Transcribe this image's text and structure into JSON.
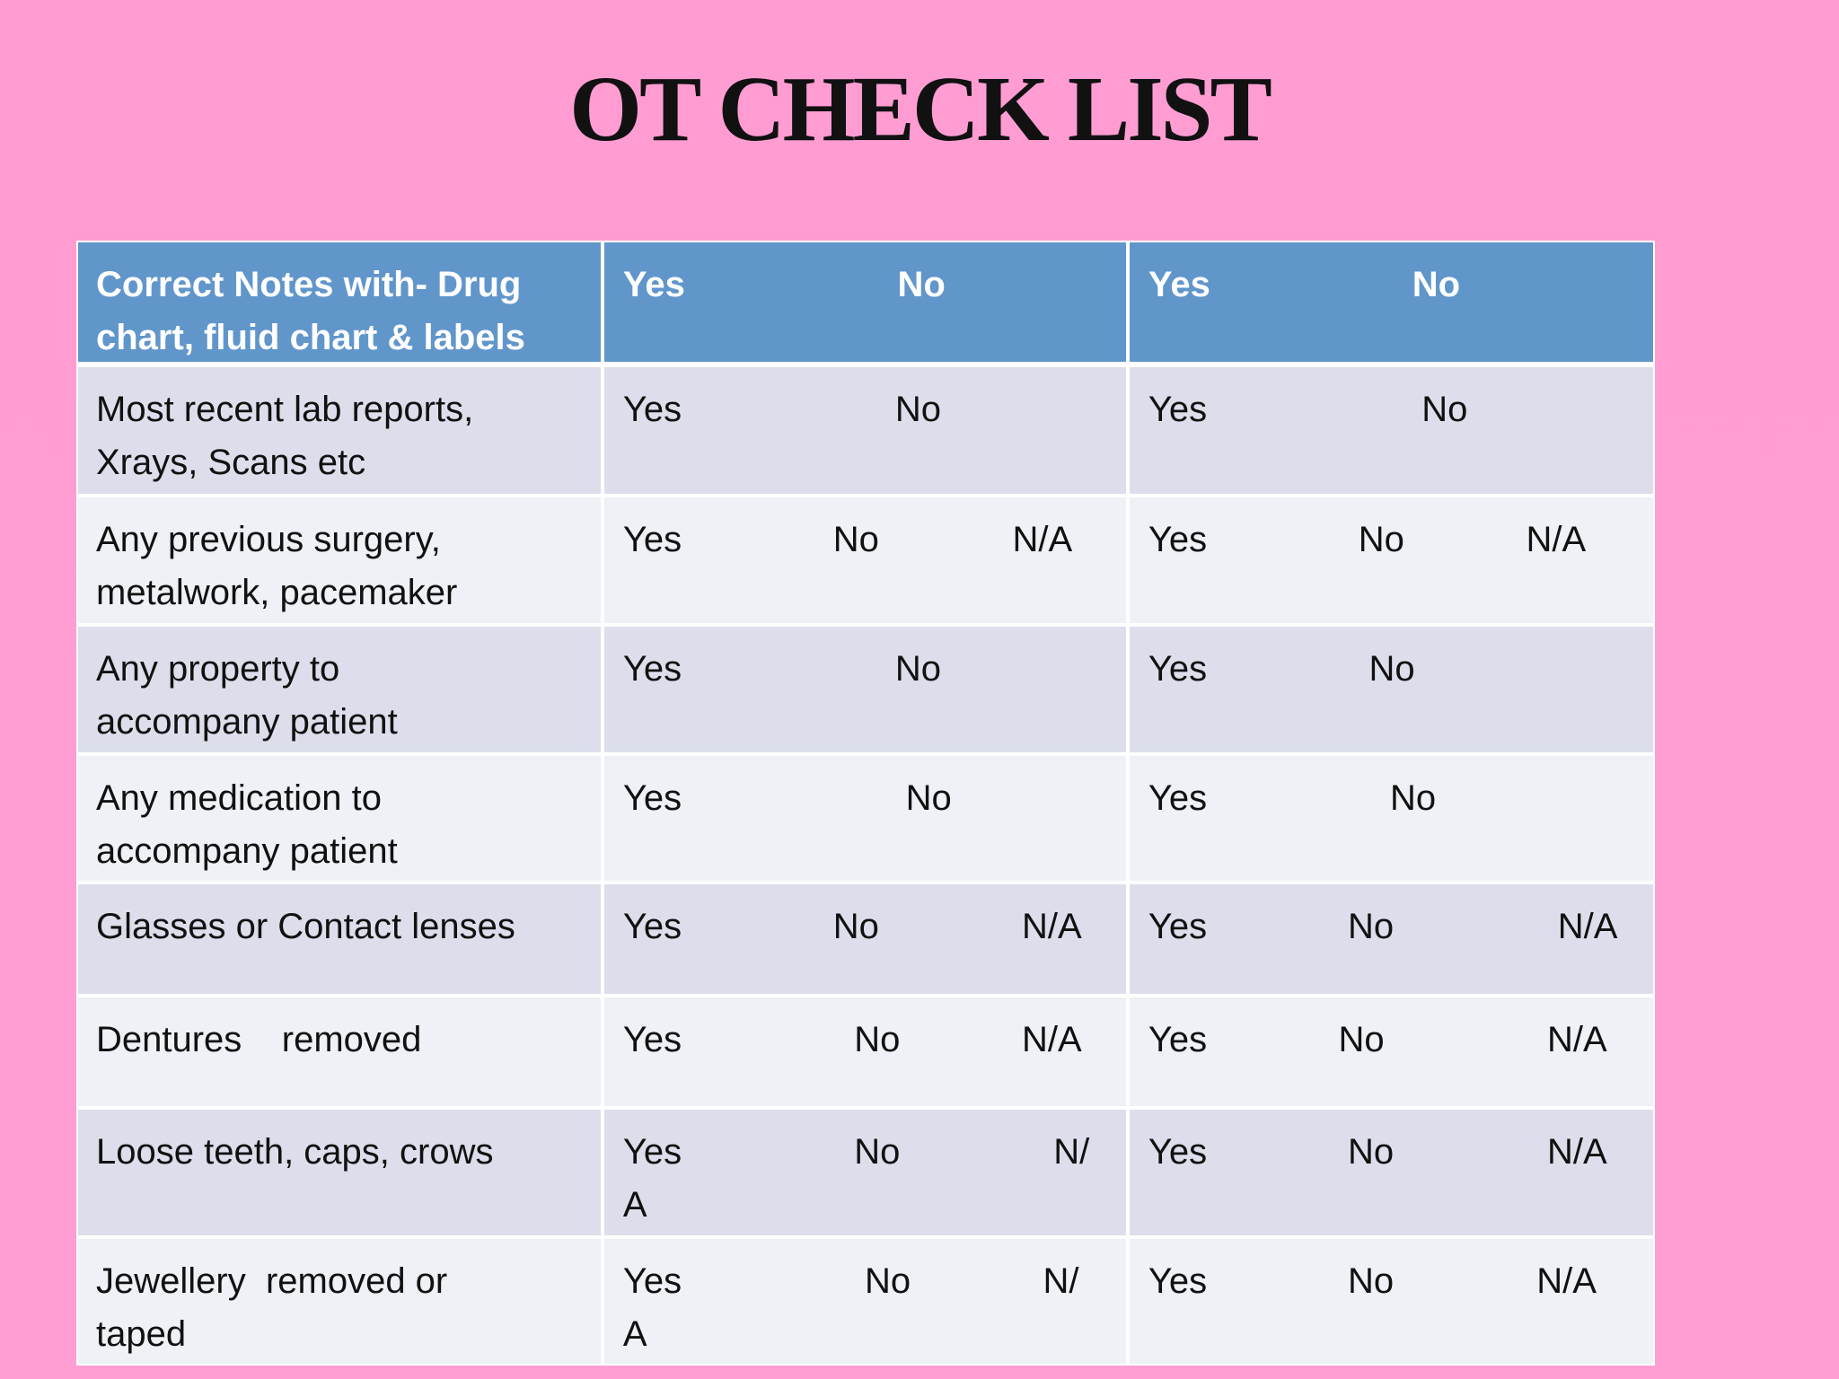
{
  "title": "OT CHECK LIST",
  "table": {
    "header": {
      "label": [
        "Correct Notes with- Drug",
        "chart, fluid chart & labels"
      ],
      "cells": [
        [
          "Yes",
          "No"
        ],
        [
          "Yes",
          "No"
        ]
      ]
    },
    "rows": [
      {
        "label": [
          "Most recent lab reports,",
          "Xrays, Scans etc"
        ],
        "cells": [
          [
            "Yes",
            "No"
          ],
          [
            "Yes",
            "No"
          ]
        ]
      },
      {
        "label": [
          "Any previous surgery,",
          "metalwork, pacemaker"
        ],
        "cells": [
          [
            "Yes",
            "No",
            "N/A"
          ],
          [
            "Yes",
            "No",
            "N/A"
          ]
        ]
      },
      {
        "label": [
          "Any property to",
          "accompany patient"
        ],
        "cells": [
          [
            "Yes",
            "No"
          ],
          [
            "Yes",
            "No"
          ]
        ]
      },
      {
        "label": [
          "Any medication to",
          "accompany patient"
        ],
        "cells": [
          [
            "Yes",
            "No"
          ],
          [
            "Yes",
            "No"
          ]
        ]
      },
      {
        "label": [
          "Glasses or Contact lenses"
        ],
        "cells": [
          [
            "Yes",
            "No",
            "N/A"
          ],
          [
            "Yes",
            "No",
            "N/A"
          ]
        ]
      },
      {
        "label": [
          "Dentures    removed"
        ],
        "cells": [
          [
            "Yes",
            "No",
            "N/A"
          ],
          [
            "Yes",
            "No",
            "N/A"
          ]
        ]
      },
      {
        "label": [
          "Loose teeth, caps, crows"
        ],
        "cells": [
          [
            "Yes",
            "No",
            "N/",
            "A"
          ],
          [
            "Yes",
            "No",
            "N/A"
          ]
        ]
      },
      {
        "label": [
          "Jewellery  removed or",
          "taped"
        ],
        "cells": [
          [
            "Yes",
            "No",
            "N/",
            "A"
          ],
          [
            "Yes",
            "No",
            "N/A"
          ]
        ]
      }
    ]
  }
}
